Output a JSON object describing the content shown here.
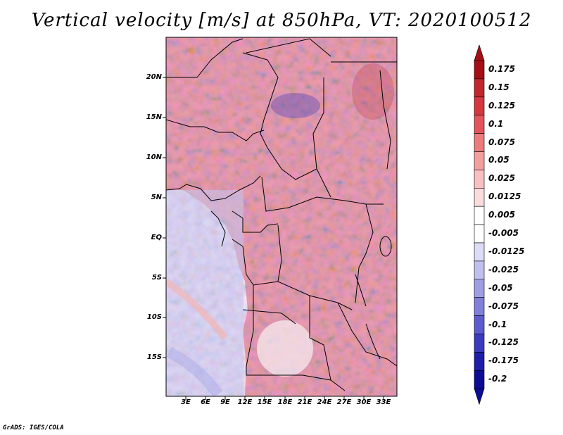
{
  "title": "Vertical velocity [m/s] at 850hPa, VT: 2020100512",
  "footer": "GrADS: IGES/COLA",
  "map": {
    "variable": "Vertical velocity",
    "units": "m/s",
    "level": "850hPa",
    "valid_time": "2020100512",
    "lat_labels": [
      "20N",
      "15N",
      "10N",
      "5N",
      "EQ",
      "5S",
      "10S",
      "15S"
    ],
    "lon_labels": [
      "3E",
      "6E",
      "9E",
      "12E",
      "15E",
      "18E",
      "21E",
      "24E",
      "27E",
      "30E",
      "33E"
    ]
  },
  "colorbar": {
    "levels": [
      "0.175",
      "0.15",
      "0.125",
      "0.1",
      "0.075",
      "0.05",
      "0.025",
      "0.0125",
      "0.005",
      "-0.005",
      "-0.0125",
      "-0.025",
      "-0.05",
      "-0.075",
      "-0.1",
      "-0.125",
      "-0.175",
      "-0.2"
    ],
    "colors": [
      "#a50f15",
      "#c1272d",
      "#d7373e",
      "#e4545a",
      "#ee7b7b",
      "#f49e9e",
      "#f8c0c0",
      "#fbdcdc",
      "#ffffff",
      "#ffffff",
      "#dcdcf7",
      "#c0c0f0",
      "#9e9ee6",
      "#7f7fdc",
      "#5c5cd0",
      "#3b3bc0",
      "#1e1eac",
      "#0c0c96"
    ]
  }
}
